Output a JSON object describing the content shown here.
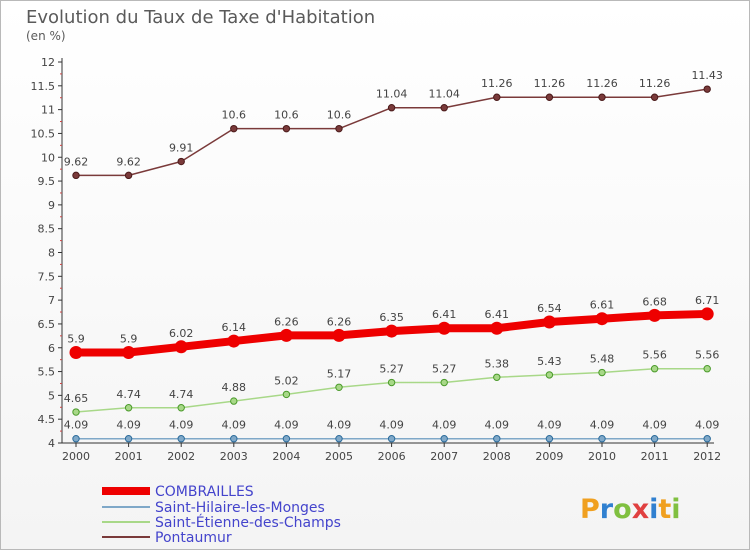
{
  "chart_data": {
    "type": "line",
    "title": "Evolution du Taux de Taxe d'Habitation",
    "subtitle": "(en %)",
    "xlabel": "",
    "ylabel": "",
    "categories": [
      "2000",
      "2001",
      "2002",
      "2003",
      "2004",
      "2005",
      "2006",
      "2007",
      "2008",
      "2009",
      "2010",
      "2011",
      "2012"
    ],
    "ylim": [
      4,
      12
    ],
    "yticks": [
      "4",
      "4.5",
      "5",
      "5.5",
      "6",
      "6.5",
      "7",
      "7.5",
      "8",
      "8.5",
      "9",
      "9.5",
      "10",
      "10.5",
      "11",
      "11.5",
      "12"
    ],
    "grid": false,
    "legend_position": "bottom-left",
    "series": [
      {
        "name": "COMBRAILLES",
        "color": "#ee0000",
        "width": 8,
        "values": [
          5.9,
          5.9,
          6.02,
          6.14,
          6.26,
          6.26,
          6.35,
          6.41,
          6.41,
          6.54,
          6.61,
          6.68,
          6.71
        ],
        "labels": [
          "5.9",
          "5.9",
          "6.02",
          "6.14",
          "6.26",
          "6.26",
          "6.35",
          "6.41",
          "6.41",
          "6.54",
          "6.61",
          "6.68",
          "6.71"
        ]
      },
      {
        "name": "Saint-Hilaire-les-Monges",
        "color": "#7fa8c8",
        "width": 1.5,
        "values": [
          4.09,
          4.09,
          4.09,
          4.09,
          4.09,
          4.09,
          4.09,
          4.09,
          4.09,
          4.09,
          4.09,
          4.09,
          4.09
        ],
        "labels": [
          "4.09",
          "4.09",
          "4.09",
          "4.09",
          "4.09",
          "4.09",
          "4.09",
          "4.09",
          "4.09",
          "4.09",
          "4.09",
          "4.09",
          "4.09"
        ]
      },
      {
        "name": "Saint-Étienne-des-Champs",
        "color": "#a8d888",
        "width": 1.5,
        "values": [
          4.65,
          4.74,
          4.74,
          4.88,
          5.02,
          5.17,
          5.27,
          5.27,
          5.38,
          5.43,
          5.48,
          5.56,
          5.56
        ],
        "labels": [
          "4.65",
          "4.74",
          "4.74",
          "4.88",
          "5.02",
          "5.17",
          "5.27",
          "5.27",
          "5.38",
          "5.43",
          "5.48",
          "5.56",
          "5.56"
        ]
      },
      {
        "name": "Pontaumur",
        "color": "#7a3a3a",
        "width": 1.5,
        "values": [
          9.62,
          9.62,
          9.91,
          10.6,
          10.6,
          10.6,
          11.04,
          11.04,
          11.26,
          11.26,
          11.26,
          11.26,
          11.43
        ],
        "labels": [
          "9.62",
          "9.62",
          "9.91",
          "10.6",
          "10.6",
          "10.6",
          "11.04",
          "11.04",
          "11.26",
          "11.26",
          "11.26",
          "11.26",
          "11.43"
        ]
      }
    ]
  },
  "logo": {
    "text": "Proxiti",
    "letters": [
      {
        "ch": "P",
        "color": "#f0a020"
      },
      {
        "ch": "r",
        "color": "#3080d0"
      },
      {
        "ch": "o",
        "color": "#80c040"
      },
      {
        "ch": "x",
        "color": "#e04040"
      },
      {
        "ch": "i",
        "color": "#3080d0"
      },
      {
        "ch": "t",
        "color": "#f0a020"
      },
      {
        "ch": "i",
        "color": "#80c040"
      }
    ]
  },
  "colors": {
    "legend_text": "#4444cc",
    "axis": "#333333"
  }
}
